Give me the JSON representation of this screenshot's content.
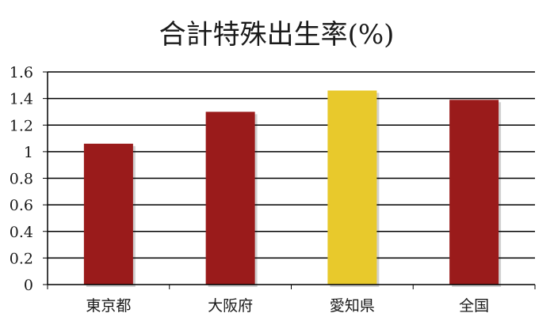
{
  "chart_data": {
    "type": "bar",
    "title": "合計特殊出生率(%)",
    "xlabel": "",
    "ylabel": "",
    "categories": [
      "東京都",
      "大阪府",
      "愛知県",
      "全国"
    ],
    "values": [
      1.06,
      1.3,
      1.46,
      1.39
    ],
    "bar_colors": [
      "#9a1b1b",
      "#9a1b1b",
      "#e8c92c",
      "#9a1b1b"
    ],
    "ylim": [
      0,
      1.6
    ],
    "yticks": [
      "0",
      "0.2",
      "0.4",
      "0.6",
      "0.8",
      "1",
      "1.2",
      "1.4",
      "1.6"
    ],
    "grid": true,
    "legend": "none"
  }
}
